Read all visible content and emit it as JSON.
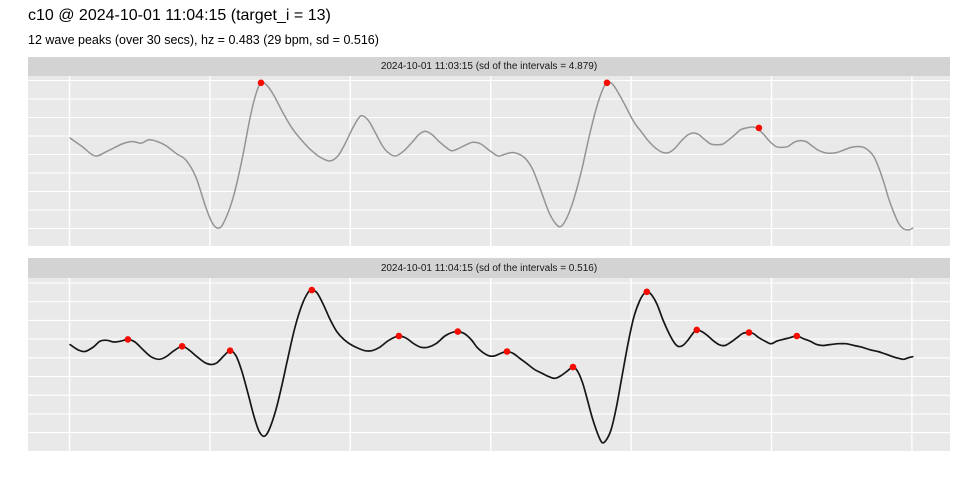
{
  "header": {
    "title": "c10 @ 2024-10-01 11:04:15 (target_i = 13)",
    "subtitle": "12 wave peaks (over 30 secs), hz = 0.483 (29 bpm, sd = 0.516)"
  },
  "chart_data": {
    "type": "line",
    "x_unit": "seconds",
    "x_range": [
      0,
      30
    ],
    "x_ticks": [
      0,
      5,
      10,
      15,
      20,
      25,
      30
    ],
    "grid": true,
    "legend": "none",
    "colors": {
      "panel_bg": "#e9e9e9",
      "strip_bg": "#d3d3d3",
      "grid": "#ffffff",
      "peak": "#f50b00"
    },
    "panels": [
      {
        "strip_label": "2024-10-01 11:03:15 (sd of the intervals = 4.879)",
        "line_color": "#949494",
        "line_width": 1.5,
        "points": [
          [
            0.02,
            0.27
          ],
          [
            0.45,
            0.17
          ],
          [
            0.91,
            0.06
          ],
          [
            1.37,
            0.12
          ],
          [
            1.87,
            0.2
          ],
          [
            2.23,
            0.23
          ],
          [
            2.55,
            0.21
          ],
          [
            2.83,
            0.25
          ],
          [
            3.12,
            0.23
          ],
          [
            3.44,
            0.18
          ],
          [
            3.79,
            0.09
          ],
          [
            4.15,
            0.01
          ],
          [
            4.5,
            -0.19
          ],
          [
            4.83,
            -0.52
          ],
          [
            5.07,
            -0.72
          ],
          [
            5.29,
            -0.79
          ],
          [
            5.5,
            -0.72
          ],
          [
            5.82,
            -0.44
          ],
          [
            6.14,
            0.01
          ],
          [
            6.43,
            0.51
          ],
          [
            6.64,
            0.79
          ],
          [
            6.82,
            0.92
          ],
          [
            7.03,
            0.89
          ],
          [
            7.28,
            0.77
          ],
          [
            7.6,
            0.57
          ],
          [
            7.92,
            0.39
          ],
          [
            8.28,
            0.24
          ],
          [
            8.63,
            0.12
          ],
          [
            8.95,
            0.04
          ],
          [
            9.28,
            0.0
          ],
          [
            9.56,
            0.06
          ],
          [
            9.84,
            0.22
          ],
          [
            10.09,
            0.39
          ],
          [
            10.31,
            0.51
          ],
          [
            10.45,
            0.53
          ],
          [
            10.66,
            0.47
          ],
          [
            10.91,
            0.32
          ],
          [
            11.16,
            0.17
          ],
          [
            11.38,
            0.09
          ],
          [
            11.62,
            0.06
          ],
          [
            11.91,
            0.12
          ],
          [
            12.2,
            0.22
          ],
          [
            12.44,
            0.31
          ],
          [
            12.66,
            0.35
          ],
          [
            12.91,
            0.31
          ],
          [
            13.16,
            0.23
          ],
          [
            13.41,
            0.16
          ],
          [
            13.62,
            0.12
          ],
          [
            13.87,
            0.15
          ],
          [
            14.12,
            0.19
          ],
          [
            14.37,
            0.22
          ],
          [
            14.65,
            0.2
          ],
          [
            14.97,
            0.12
          ],
          [
            15.26,
            0.06
          ],
          [
            15.51,
            0.08
          ],
          [
            15.76,
            0.1
          ],
          [
            16.01,
            0.08
          ],
          [
            16.26,
            0.02
          ],
          [
            16.51,
            -0.11
          ],
          [
            16.79,
            -0.35
          ],
          [
            17.07,
            -0.6
          ],
          [
            17.32,
            -0.74
          ],
          [
            17.5,
            -0.77
          ],
          [
            17.71,
            -0.67
          ],
          [
            17.96,
            -0.45
          ],
          [
            18.25,
            -0.09
          ],
          [
            18.53,
            0.32
          ],
          [
            18.78,
            0.64
          ],
          [
            19.0,
            0.85
          ],
          [
            19.14,
            0.92
          ],
          [
            19.32,
            0.91
          ],
          [
            19.53,
            0.81
          ],
          [
            19.81,
            0.64
          ],
          [
            20.1,
            0.46
          ],
          [
            20.35,
            0.35
          ],
          [
            20.63,
            0.23
          ],
          [
            20.88,
            0.15
          ],
          [
            21.13,
            0.1
          ],
          [
            21.35,
            0.1
          ],
          [
            21.56,
            0.15
          ],
          [
            21.77,
            0.23
          ],
          [
            21.99,
            0.3
          ],
          [
            22.2,
            0.33
          ],
          [
            22.41,
            0.31
          ],
          [
            22.63,
            0.25
          ],
          [
            22.84,
            0.2
          ],
          [
            23.06,
            0.19
          ],
          [
            23.27,
            0.2
          ],
          [
            23.48,
            0.25
          ],
          [
            23.7,
            0.31
          ],
          [
            23.91,
            0.37
          ],
          [
            24.12,
            0.39
          ],
          [
            24.34,
            0.4
          ],
          [
            24.51,
            0.38
          ],
          [
            24.73,
            0.31
          ],
          [
            24.94,
            0.23
          ],
          [
            25.16,
            0.17
          ],
          [
            25.37,
            0.16
          ],
          [
            25.58,
            0.17
          ],
          [
            25.8,
            0.22
          ],
          [
            26.01,
            0.24
          ],
          [
            26.22,
            0.23
          ],
          [
            26.44,
            0.18
          ],
          [
            26.65,
            0.13
          ],
          [
            26.87,
            0.1
          ],
          [
            27.08,
            0.09
          ],
          [
            27.33,
            0.1
          ],
          [
            27.58,
            0.13
          ],
          [
            27.83,
            0.16
          ],
          [
            28.08,
            0.17
          ],
          [
            28.29,
            0.16
          ],
          [
            28.47,
            0.12
          ],
          [
            28.65,
            0.05
          ],
          [
            28.82,
            -0.08
          ],
          [
            29.0,
            -0.25
          ],
          [
            29.18,
            -0.45
          ],
          [
            29.36,
            -0.61
          ],
          [
            29.54,
            -0.74
          ],
          [
            29.71,
            -0.8
          ],
          [
            29.89,
            -0.81
          ],
          [
            30.03,
            -0.79
          ]
        ],
        "peaks": [
          [
            6.82,
            0.92
          ],
          [
            19.14,
            0.92
          ],
          [
            24.55,
            0.39
          ]
        ]
      },
      {
        "strip_label": "2024-10-01 11:04:15 (sd of the intervals = 0.516)",
        "line_color": "#161616",
        "line_width": 1.7,
        "points": [
          [
            0.02,
            0.23
          ],
          [
            0.3,
            0.17
          ],
          [
            0.55,
            0.15
          ],
          [
            0.84,
            0.2
          ],
          [
            1.09,
            0.27
          ],
          [
            1.34,
            0.28
          ],
          [
            1.58,
            0.26
          ],
          [
            1.83,
            0.27
          ],
          [
            2.08,
            0.29
          ],
          [
            2.33,
            0.26
          ],
          [
            2.62,
            0.17
          ],
          [
            2.9,
            0.09
          ],
          [
            3.19,
            0.06
          ],
          [
            3.44,
            0.09
          ],
          [
            3.72,
            0.16
          ],
          [
            4.01,
            0.21
          ],
          [
            4.25,
            0.17
          ],
          [
            4.54,
            0.09
          ],
          [
            4.83,
            0.02
          ],
          [
            5.04,
            0.0
          ],
          [
            5.25,
            0.02
          ],
          [
            5.5,
            0.1
          ],
          [
            5.72,
            0.16
          ],
          [
            5.93,
            0.1
          ],
          [
            6.14,
            -0.08
          ],
          [
            6.36,
            -0.34
          ],
          [
            6.57,
            -0.6
          ],
          [
            6.75,
            -0.77
          ],
          [
            6.93,
            -0.83
          ],
          [
            7.1,
            -0.76
          ],
          [
            7.32,
            -0.56
          ],
          [
            7.53,
            -0.29
          ],
          [
            7.78,
            0.08
          ],
          [
            8.03,
            0.43
          ],
          [
            8.28,
            0.69
          ],
          [
            8.49,
            0.83
          ],
          [
            8.63,
            0.86
          ],
          [
            8.81,
            0.83
          ],
          [
            9.03,
            0.7
          ],
          [
            9.28,
            0.52
          ],
          [
            9.52,
            0.38
          ],
          [
            9.77,
            0.29
          ],
          [
            10.02,
            0.23
          ],
          [
            10.27,
            0.19
          ],
          [
            10.52,
            0.16
          ],
          [
            10.77,
            0.16
          ],
          [
            11.05,
            0.2
          ],
          [
            11.37,
            0.28
          ],
          [
            11.73,
            0.33
          ],
          [
            12.01,
            0.3
          ],
          [
            12.26,
            0.24
          ],
          [
            12.51,
            0.2
          ],
          [
            12.77,
            0.2
          ],
          [
            13.05,
            0.24
          ],
          [
            13.37,
            0.33
          ],
          [
            13.62,
            0.37
          ],
          [
            13.83,
            0.38
          ],
          [
            14.05,
            0.36
          ],
          [
            14.3,
            0.29
          ],
          [
            14.51,
            0.2
          ],
          [
            14.72,
            0.14
          ],
          [
            14.94,
            0.1
          ],
          [
            15.15,
            0.1
          ],
          [
            15.36,
            0.13
          ],
          [
            15.58,
            0.15
          ],
          [
            15.79,
            0.13
          ],
          [
            16.04,
            0.07
          ],
          [
            16.33,
            0.0
          ],
          [
            16.57,
            -0.06
          ],
          [
            16.82,
            -0.1
          ],
          [
            17.07,
            -0.14
          ],
          [
            17.29,
            -0.16
          ],
          [
            17.5,
            -0.13
          ],
          [
            17.71,
            -0.08
          ],
          [
            17.93,
            -0.03
          ],
          [
            18.1,
            -0.08
          ],
          [
            18.28,
            -0.22
          ],
          [
            18.46,
            -0.43
          ],
          [
            18.64,
            -0.64
          ],
          [
            18.82,
            -0.81
          ],
          [
            18.96,
            -0.9
          ],
          [
            19.1,
            -0.88
          ],
          [
            19.28,
            -0.76
          ],
          [
            19.46,
            -0.52
          ],
          [
            19.67,
            -0.15
          ],
          [
            19.89,
            0.24
          ],
          [
            20.1,
            0.55
          ],
          [
            20.31,
            0.74
          ],
          [
            20.49,
            0.83
          ],
          [
            20.6,
            0.84
          ],
          [
            20.74,
            0.8
          ],
          [
            20.92,
            0.7
          ],
          [
            21.13,
            0.52
          ],
          [
            21.35,
            0.36
          ],
          [
            21.52,
            0.26
          ],
          [
            21.67,
            0.21
          ],
          [
            21.84,
            0.22
          ],
          [
            22.02,
            0.28
          ],
          [
            22.2,
            0.36
          ],
          [
            22.34,
            0.4
          ],
          [
            22.52,
            0.38
          ],
          [
            22.7,
            0.34
          ],
          [
            22.91,
            0.28
          ],
          [
            23.13,
            0.23
          ],
          [
            23.34,
            0.22
          ],
          [
            23.56,
            0.26
          ],
          [
            23.77,
            0.31
          ],
          [
            23.98,
            0.36
          ],
          [
            24.16,
            0.37
          ],
          [
            24.34,
            0.36
          ],
          [
            24.55,
            0.31
          ],
          [
            24.77,
            0.27
          ],
          [
            24.98,
            0.24
          ],
          [
            25.19,
            0.27
          ],
          [
            25.41,
            0.29
          ],
          [
            25.66,
            0.31
          ],
          [
            25.9,
            0.33
          ],
          [
            26.12,
            0.3
          ],
          [
            26.37,
            0.27
          ],
          [
            26.62,
            0.23
          ],
          [
            26.83,
            0.22
          ],
          [
            27.08,
            0.23
          ],
          [
            27.37,
            0.24
          ],
          [
            27.65,
            0.24
          ],
          [
            27.94,
            0.22
          ],
          [
            28.22,
            0.2
          ],
          [
            28.51,
            0.17
          ],
          [
            28.79,
            0.15
          ],
          [
            29.07,
            0.12
          ],
          [
            29.32,
            0.09
          ],
          [
            29.54,
            0.07
          ],
          [
            29.71,
            0.06
          ],
          [
            29.89,
            0.08
          ],
          [
            30.03,
            0.09
          ]
        ],
        "peaks": [
          [
            2.08,
            0.29
          ],
          [
            4.01,
            0.21
          ],
          [
            5.72,
            0.16
          ],
          [
            8.63,
            0.86
          ],
          [
            11.73,
            0.33
          ],
          [
            13.83,
            0.38
          ],
          [
            15.58,
            0.15
          ],
          [
            17.93,
            -0.03
          ],
          [
            20.56,
            0.84
          ],
          [
            22.34,
            0.4
          ],
          [
            24.2,
            0.37
          ],
          [
            25.9,
            0.33
          ]
        ]
      }
    ]
  }
}
